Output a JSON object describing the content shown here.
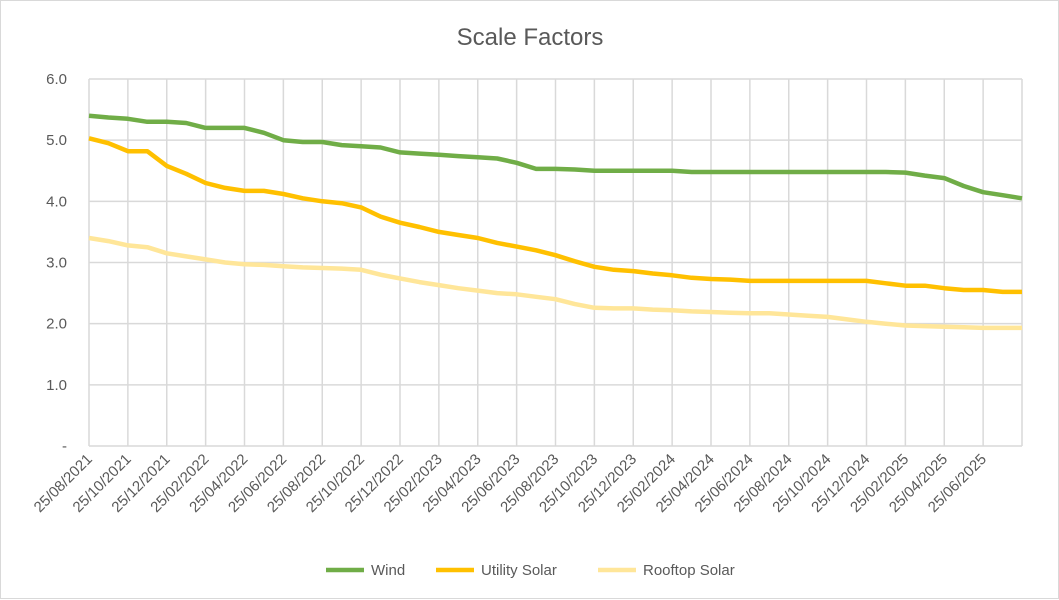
{
  "chart_data": {
    "type": "line",
    "title": "Scale Factors",
    "xlabel": "",
    "ylabel": "",
    "ylim": [
      0,
      6
    ],
    "y_ticks": [
      "-",
      "1.0",
      "2.0",
      "3.0",
      "4.0",
      "5.0",
      "6.0"
    ],
    "x_tick_labels": [
      "25/08/2021",
      "25/10/2021",
      "25/12/2021",
      "25/02/2022",
      "25/04/2022",
      "25/06/2022",
      "25/08/2022",
      "25/10/2022",
      "25/12/2022",
      "25/02/2023",
      "25/04/2023",
      "25/06/2023",
      "25/08/2023",
      "25/10/2023",
      "25/12/2023",
      "25/02/2024",
      "25/04/2024",
      "25/06/2024",
      "25/08/2024",
      "25/10/2024",
      "25/12/2024",
      "25/02/2025",
      "25/04/2025",
      "25/06/2025"
    ],
    "x": [
      "25/08/2021",
      "25/09/2021",
      "25/10/2021",
      "25/11/2021",
      "25/12/2021",
      "25/01/2022",
      "25/02/2022",
      "25/03/2022",
      "25/04/2022",
      "25/05/2022",
      "25/06/2022",
      "25/07/2022",
      "25/08/2022",
      "25/09/2022",
      "25/10/2022",
      "25/11/2022",
      "25/12/2022",
      "25/01/2023",
      "25/02/2023",
      "25/03/2023",
      "25/04/2023",
      "25/05/2023",
      "25/06/2023",
      "25/07/2023",
      "25/08/2023",
      "25/09/2023",
      "25/10/2023",
      "25/11/2023",
      "25/12/2023",
      "25/01/2024",
      "25/02/2024",
      "25/03/2024",
      "25/04/2024",
      "25/05/2024",
      "25/06/2024",
      "25/07/2024",
      "25/08/2024",
      "25/09/2024",
      "25/10/2024",
      "25/11/2024",
      "25/12/2024",
      "25/01/2025",
      "25/02/2025",
      "25/03/2025",
      "25/04/2025",
      "25/05/2025",
      "25/06/2025",
      "25/07/2025",
      "25/08/2025"
    ],
    "grid": true,
    "legend": "bottom",
    "series": [
      {
        "name": "Wind",
        "color": "#70AD47",
        "values": [
          5.4,
          5.37,
          5.35,
          5.3,
          5.3,
          5.28,
          5.2,
          5.2,
          5.2,
          5.12,
          5.0,
          4.97,
          4.97,
          4.92,
          4.9,
          4.88,
          4.8,
          4.78,
          4.76,
          4.74,
          4.72,
          4.7,
          4.63,
          4.53,
          4.53,
          4.52,
          4.5,
          4.5,
          4.5,
          4.5,
          4.5,
          4.48,
          4.48,
          4.48,
          4.48,
          4.48,
          4.48,
          4.48,
          4.48,
          4.48,
          4.48,
          4.48,
          4.47,
          4.42,
          4.38,
          4.25,
          4.15,
          4.1,
          4.05
        ]
      },
      {
        "name": "Utility Solar",
        "color": "#FFC000",
        "values": [
          5.03,
          4.95,
          4.82,
          4.82,
          4.58,
          4.45,
          4.3,
          4.22,
          4.17,
          4.17,
          4.12,
          4.05,
          4.0,
          3.97,
          3.9,
          3.75,
          3.65,
          3.58,
          3.5,
          3.45,
          3.4,
          3.32,
          3.26,
          3.2,
          3.12,
          3.02,
          2.93,
          2.88,
          2.86,
          2.82,
          2.79,
          2.75,
          2.73,
          2.72,
          2.7,
          2.7,
          2.7,
          2.7,
          2.7,
          2.7,
          2.7,
          2.66,
          2.62,
          2.62,
          2.58,
          2.55,
          2.55,
          2.52,
          2.52
        ]
      },
      {
        "name": "Rooftop Solar",
        "color": "#FFE699",
        "values": [
          3.4,
          3.35,
          3.28,
          3.25,
          3.15,
          3.1,
          3.05,
          3.0,
          2.97,
          2.96,
          2.94,
          2.92,
          2.91,
          2.9,
          2.88,
          2.8,
          2.74,
          2.68,
          2.63,
          2.58,
          2.54,
          2.5,
          2.48,
          2.44,
          2.4,
          2.32,
          2.26,
          2.25,
          2.25,
          2.23,
          2.22,
          2.2,
          2.19,
          2.18,
          2.17,
          2.17,
          2.15,
          2.13,
          2.11,
          2.07,
          2.03,
          2.0,
          1.97,
          1.96,
          1.95,
          1.94,
          1.93,
          1.93,
          1.93
        ]
      }
    ]
  }
}
